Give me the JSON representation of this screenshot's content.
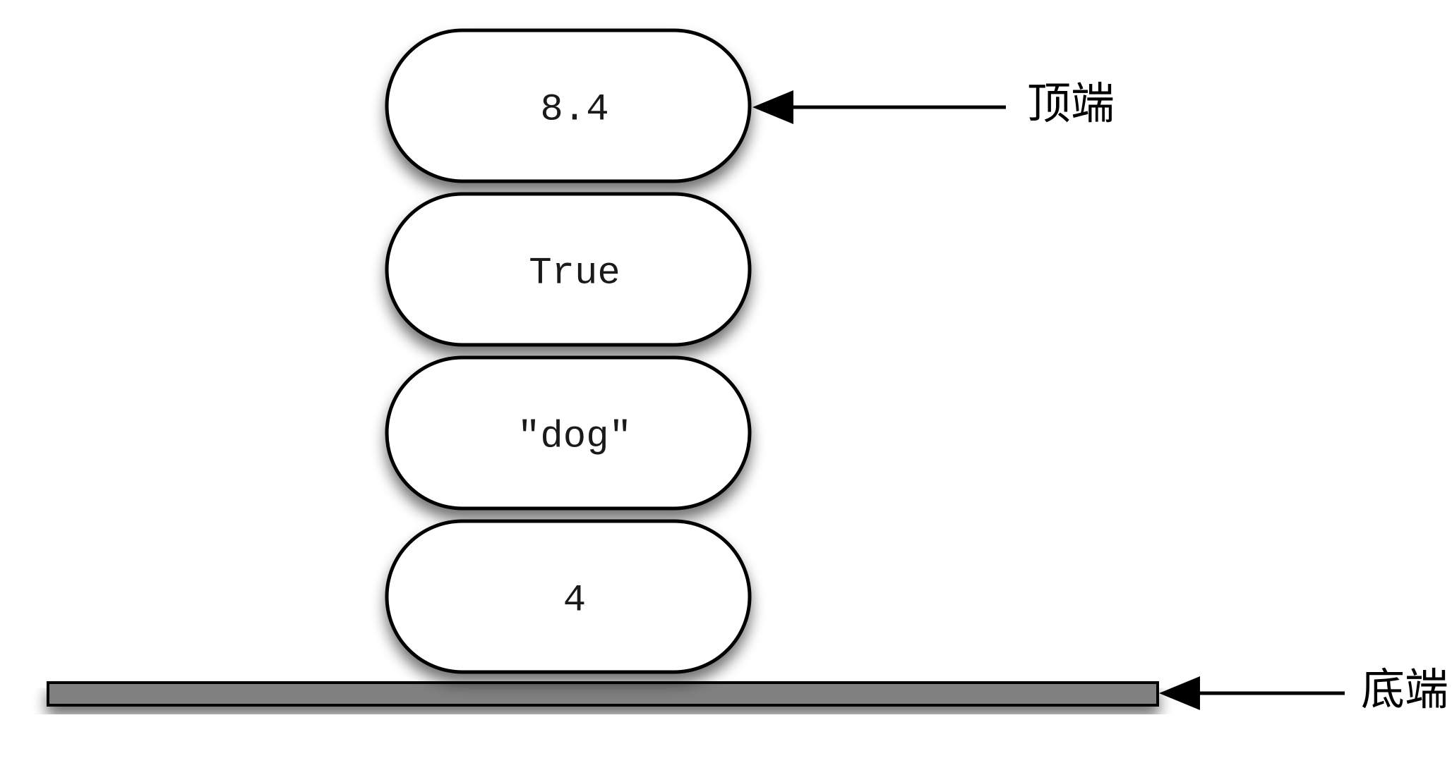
{
  "stack": {
    "items": [
      {
        "value": "8.4"
      },
      {
        "value": "True"
      },
      {
        "value": "\"dog\""
      },
      {
        "value": "4"
      }
    ],
    "top_label": "顶端",
    "bottom_label": "底端"
  },
  "colors": {
    "item_fill": "#ffffff",
    "item_stroke": "#000000",
    "base_fill": "#808080",
    "arrow": "#000000"
  }
}
